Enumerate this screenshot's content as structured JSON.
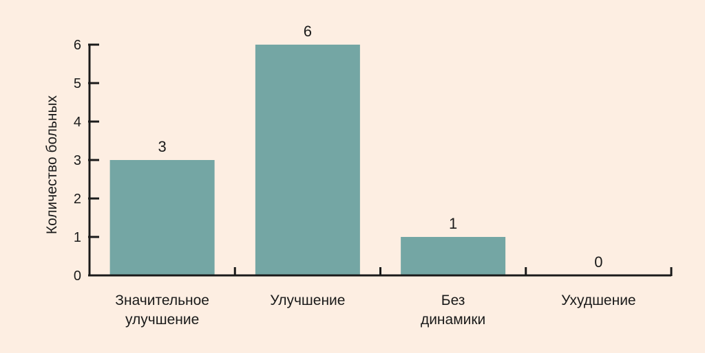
{
  "chart_data": {
    "type": "bar",
    "categories": [
      [
        "Значительное",
        "улучшение"
      ],
      [
        "Улучшение"
      ],
      [
        "Без",
        "динамики"
      ],
      [
        "Ухудшение"
      ]
    ],
    "values": [
      3,
      6,
      1,
      0
    ],
    "ylabel": "Количество больных",
    "xlabel": "",
    "ylim": [
      0,
      6
    ],
    "yticks": [
      0,
      1,
      2,
      3,
      4,
      5,
      6
    ],
    "grid": false,
    "bar_color": "#74a6a4",
    "axis_color": "#1a1a1a",
    "background": "#fdeee2"
  }
}
